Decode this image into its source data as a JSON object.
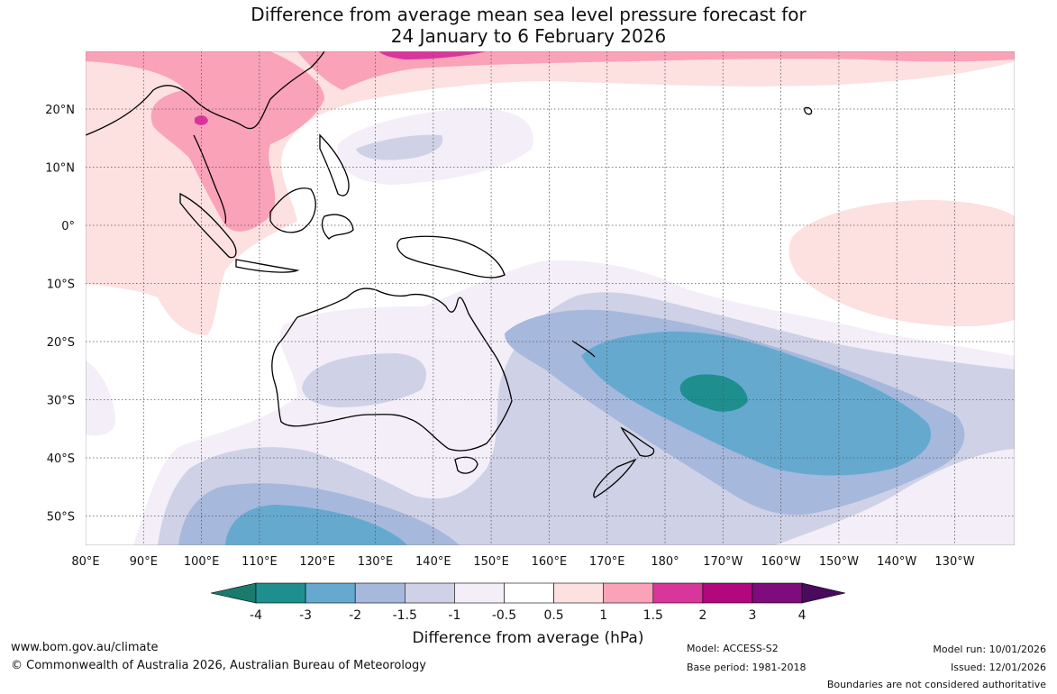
{
  "title": {
    "line1": "Difference from average mean sea level pressure forecast for",
    "line2": "24 January to 6 February 2026"
  },
  "axes": {
    "lon_labels": [
      "80°E",
      "90°E",
      "100°E",
      "110°E",
      "120°E",
      "130°E",
      "140°E",
      "150°E",
      "160°E",
      "170°E",
      "180°",
      "170°W",
      "160°W",
      "150°W",
      "140°W",
      "130°W"
    ],
    "lat_labels": [
      "20°N",
      "10°N",
      "0°",
      "10°S",
      "20°S",
      "30°S",
      "40°S",
      "50°S"
    ]
  },
  "colorbar": {
    "title": "Difference from average (hPa)",
    "tick_labels": [
      "-4",
      "-3",
      "-2",
      "-1.5",
      "-1",
      "-0.5",
      "0.5",
      "1",
      "1.5",
      "2",
      "3",
      "4"
    ],
    "colors": [
      "#1a7a6c",
      "#1e8f8e",
      "#66a9cf",
      "#a6b8dc",
      "#cfd1e6",
      "#f3eef7",
      "#ffffff",
      "#fde0e0",
      "#f9a2b8",
      "#d9369b",
      "#b3077e",
      "#7e0c7c",
      "#4a0a5e"
    ]
  },
  "footer": {
    "website": "www.bom.gov.au/climate",
    "copyright": "© Commonwealth of Australia 2026, Australian Bureau of Meteorology",
    "model": "Model: ACCESS-S2",
    "base_period": "Base period: 1981-2018",
    "model_run": "Model run: 10/01/2026",
    "issued": "Issued: 12/01/2026",
    "boundaries": "Boundaries are not considered authoritative"
  }
}
